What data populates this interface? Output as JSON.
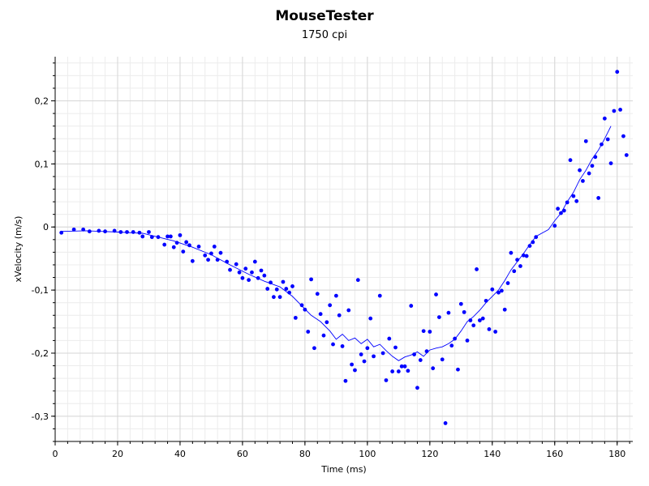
{
  "chart_data": {
    "type": "scatter",
    "title": "MouseTester",
    "subtitle": "1750 cpi",
    "xlabel": "Time (ms)",
    "ylabel": "xVelocity (m/s)",
    "xlim": [
      0,
      185
    ],
    "ylim": [
      -0.34,
      0.27
    ],
    "x_ticks": [
      0,
      20,
      40,
      60,
      80,
      100,
      120,
      140,
      160,
      180
    ],
    "x_tick_labels": [
      "0",
      "20",
      "40",
      "60",
      "80",
      "100",
      "120",
      "140",
      "160",
      "180"
    ],
    "y_ticks": [
      0.2,
      0.1,
      0,
      -0.1,
      -0.2,
      -0.3
    ],
    "y_tick_labels": [
      "0,2",
      "0,1",
      "0",
      "-0,1",
      "-0,2",
      "-0,3"
    ],
    "grid": true,
    "series": [
      {
        "type": "scatter",
        "color": "#0000ff",
        "points": [
          [
            2,
            -0.009
          ],
          [
            6,
            -0.004
          ],
          [
            9,
            -0.004
          ],
          [
            11,
            -0.007
          ],
          [
            14,
            -0.006
          ],
          [
            16,
            -0.007
          ],
          [
            19,
            -0.006
          ],
          [
            21,
            -0.008
          ],
          [
            23,
            -0.008
          ],
          [
            25,
            -0.008
          ],
          [
            27,
            -0.009
          ],
          [
            28,
            -0.015
          ],
          [
            30,
            -0.008
          ],
          [
            31,
            -0.016
          ],
          [
            33,
            -0.016
          ],
          [
            35,
            -0.028
          ],
          [
            36,
            -0.015
          ],
          [
            37,
            -0.015
          ],
          [
            38,
            -0.032
          ],
          [
            39,
            -0.025
          ],
          [
            40,
            -0.013
          ],
          [
            41,
            -0.039
          ],
          [
            42,
            -0.024
          ],
          [
            43,
            -0.029
          ],
          [
            44,
            -0.054
          ],
          [
            46,
            -0.031
          ],
          [
            48,
            -0.045
          ],
          [
            49,
            -0.052
          ],
          [
            50,
            -0.042
          ],
          [
            51,
            -0.031
          ],
          [
            52,
            -0.052
          ],
          [
            53,
            -0.041
          ],
          [
            55,
            -0.055
          ],
          [
            56,
            -0.068
          ],
          [
            58,
            -0.059
          ],
          [
            59,
            -0.072
          ],
          [
            60,
            -0.081
          ],
          [
            61,
            -0.066
          ],
          [
            62,
            -0.084
          ],
          [
            63,
            -0.072
          ],
          [
            64,
            -0.055
          ],
          [
            65,
            -0.081
          ],
          [
            66,
            -0.069
          ],
          [
            67,
            -0.077
          ],
          [
            68,
            -0.098
          ],
          [
            69,
            -0.088
          ],
          [
            70,
            -0.111
          ],
          [
            71,
            -0.099
          ],
          [
            72,
            -0.111
          ],
          [
            73,
            -0.087
          ],
          [
            74,
            -0.098
          ],
          [
            75,
            -0.104
          ],
          [
            76,
            -0.094
          ],
          [
            77,
            -0.144
          ],
          [
            79,
            -0.124
          ],
          [
            80,
            -0.131
          ],
          [
            81,
            -0.166
          ],
          [
            82,
            -0.083
          ],
          [
            83,
            -0.192
          ],
          [
            84,
            -0.106
          ],
          [
            85,
            -0.138
          ],
          [
            86,
            -0.172
          ],
          [
            87,
            -0.151
          ],
          [
            88,
            -0.124
          ],
          [
            89,
            -0.186
          ],
          [
            90,
            -0.109
          ],
          [
            91,
            -0.14
          ],
          [
            92,
            -0.189
          ],
          [
            93,
            -0.244
          ],
          [
            94,
            -0.132
          ],
          [
            95,
            -0.218
          ],
          [
            96,
            -0.227
          ],
          [
            97,
            -0.084
          ],
          [
            98,
            -0.202
          ],
          [
            99,
            -0.213
          ],
          [
            100,
            -0.192
          ],
          [
            101,
            -0.145
          ],
          [
            102,
            -0.205
          ],
          [
            104,
            -0.109
          ],
          [
            105,
            -0.2
          ],
          [
            106,
            -0.243
          ],
          [
            107,
            -0.177
          ],
          [
            108,
            -0.229
          ],
          [
            109,
            -0.191
          ],
          [
            110,
            -0.229
          ],
          [
            111,
            -0.221
          ],
          [
            112,
            -0.221
          ],
          [
            113,
            -0.228
          ],
          [
            114,
            -0.125
          ],
          [
            115,
            -0.202
          ],
          [
            116,
            -0.255
          ],
          [
            117,
            -0.211
          ],
          [
            118,
            -0.165
          ],
          [
            119,
            -0.197
          ],
          [
            120,
            -0.166
          ],
          [
            121,
            -0.224
          ],
          [
            122,
            -0.107
          ],
          [
            123,
            -0.143
          ],
          [
            124,
            -0.21
          ],
          [
            125,
            -0.311
          ],
          [
            126,
            -0.136
          ],
          [
            127,
            -0.188
          ],
          [
            128,
            -0.177
          ],
          [
            129,
            -0.226
          ],
          [
            130,
            -0.122
          ],
          [
            131,
            -0.135
          ],
          [
            132,
            -0.18
          ],
          [
            133,
            -0.148
          ],
          [
            134,
            -0.156
          ],
          [
            135,
            -0.067
          ],
          [
            136,
            -0.148
          ],
          [
            137,
            -0.145
          ],
          [
            138,
            -0.117
          ],
          [
            139,
            -0.162
          ],
          [
            140,
            -0.099
          ],
          [
            141,
            -0.166
          ],
          [
            142,
            -0.104
          ],
          [
            143,
            -0.101
          ],
          [
            144,
            -0.131
          ],
          [
            145,
            -0.089
          ],
          [
            146,
            -0.041
          ],
          [
            147,
            -0.07
          ],
          [
            148,
            -0.052
          ],
          [
            149,
            -0.062
          ],
          [
            150,
            -0.045
          ],
          [
            151,
            -0.046
          ],
          [
            152,
            -0.03
          ],
          [
            153,
            -0.024
          ],
          [
            154,
            -0.016
          ],
          [
            160,
            0.002
          ],
          [
            161,
            0.029
          ],
          [
            162,
            0.022
          ],
          [
            163,
            0.026
          ],
          [
            164,
            0.039
          ],
          [
            165,
            0.106
          ],
          [
            166,
            0.049
          ],
          [
            167,
            0.041
          ],
          [
            168,
            0.09
          ],
          [
            169,
            0.073
          ],
          [
            170,
            0.136
          ],
          [
            171,
            0.085
          ],
          [
            172,
            0.097
          ],
          [
            173,
            0.111
          ],
          [
            174,
            0.046
          ],
          [
            175,
            0.131
          ],
          [
            176,
            0.172
          ],
          [
            177,
            0.139
          ],
          [
            178,
            0.101
          ],
          [
            179,
            0.184
          ],
          [
            180,
            0.246
          ],
          [
            181,
            0.186
          ],
          [
            182,
            0.144
          ],
          [
            183,
            0.114
          ]
        ]
      },
      {
        "type": "line",
        "color": "#0000ff",
        "points": [
          [
            2,
            -0.007
          ],
          [
            10,
            -0.006
          ],
          [
            20,
            -0.008
          ],
          [
            28,
            -0.01
          ],
          [
            33,
            -0.016
          ],
          [
            38,
            -0.022
          ],
          [
            44,
            -0.032
          ],
          [
            50,
            -0.044
          ],
          [
            56,
            -0.06
          ],
          [
            62,
            -0.075
          ],
          [
            67,
            -0.086
          ],
          [
            72,
            -0.095
          ],
          [
            76,
            -0.11
          ],
          [
            79,
            -0.125
          ],
          [
            82,
            -0.14
          ],
          [
            85,
            -0.15
          ],
          [
            88,
            -0.165
          ],
          [
            90,
            -0.178
          ],
          [
            92,
            -0.17
          ],
          [
            94,
            -0.18
          ],
          [
            96,
            -0.176
          ],
          [
            98,
            -0.185
          ],
          [
            100,
            -0.178
          ],
          [
            102,
            -0.19
          ],
          [
            104,
            -0.186
          ],
          [
            106,
            -0.196
          ],
          [
            108,
            -0.205
          ],
          [
            110,
            -0.212
          ],
          [
            112,
            -0.206
          ],
          [
            114,
            -0.203
          ],
          [
            116,
            -0.198
          ],
          [
            118,
            -0.205
          ],
          [
            120,
            -0.195
          ],
          [
            122,
            -0.192
          ],
          [
            124,
            -0.19
          ],
          [
            126,
            -0.185
          ],
          [
            128,
            -0.178
          ],
          [
            130,
            -0.165
          ],
          [
            132,
            -0.15
          ],
          [
            134,
            -0.142
          ],
          [
            136,
            -0.132
          ],
          [
            138,
            -0.12
          ],
          [
            140,
            -0.11
          ],
          [
            142,
            -0.1
          ],
          [
            144,
            -0.085
          ],
          [
            146,
            -0.068
          ],
          [
            148,
            -0.055
          ],
          [
            150,
            -0.042
          ],
          [
            152,
            -0.028
          ],
          [
            154,
            -0.015
          ],
          [
            158,
            -0.004
          ],
          [
            160,
            0.01
          ],
          [
            162,
            0.022
          ],
          [
            164,
            0.04
          ],
          [
            166,
            0.055
          ],
          [
            168,
            0.075
          ],
          [
            170,
            0.09
          ],
          [
            172,
            0.108
          ],
          [
            174,
            0.122
          ],
          [
            176,
            0.14
          ],
          [
            178,
            0.16
          ]
        ]
      }
    ]
  }
}
